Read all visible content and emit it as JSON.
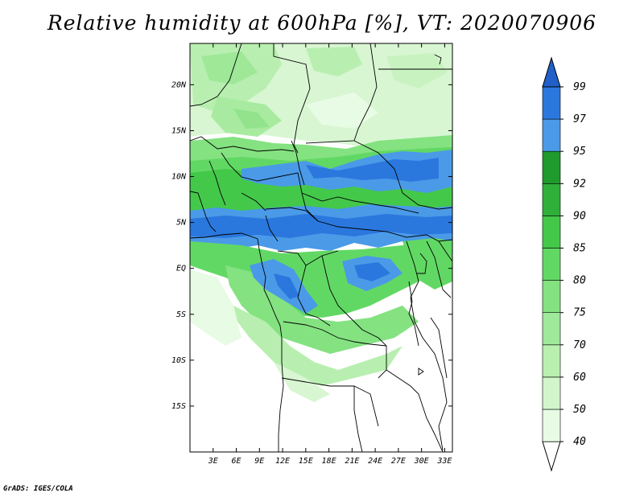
{
  "title": "Relative humidity at 600hPa [%], VT: 2020070906",
  "credit": "GrADS: IGES/COLA",
  "map": {
    "lat_labels": [
      "20N",
      "15N",
      "10N",
      "5N",
      "EQ",
      "5S",
      "10S",
      "15S"
    ],
    "lon_labels": [
      "3E",
      "6E",
      "9E",
      "12E",
      "15E",
      "18E",
      "21E",
      "24E",
      "27E",
      "30E",
      "33E"
    ],
    "lat_range": [
      -20,
      24.5
    ],
    "lon_range": [
      0,
      34
    ]
  },
  "colorbar": {
    "labels": [
      "40",
      "50",
      "60",
      "70",
      "75",
      "80",
      "85",
      "90",
      "92",
      "95",
      "97",
      "99"
    ],
    "colors": [
      "#ffffff",
      "#e8fbe4",
      "#d2f5cc",
      "#b9f0b0",
      "#9fe99a",
      "#84e281",
      "#62d864",
      "#44c84a",
      "#2fb03a",
      "#1f9a2c",
      "#4a9ae8",
      "#2a78de",
      "#2060c8"
    ]
  }
}
